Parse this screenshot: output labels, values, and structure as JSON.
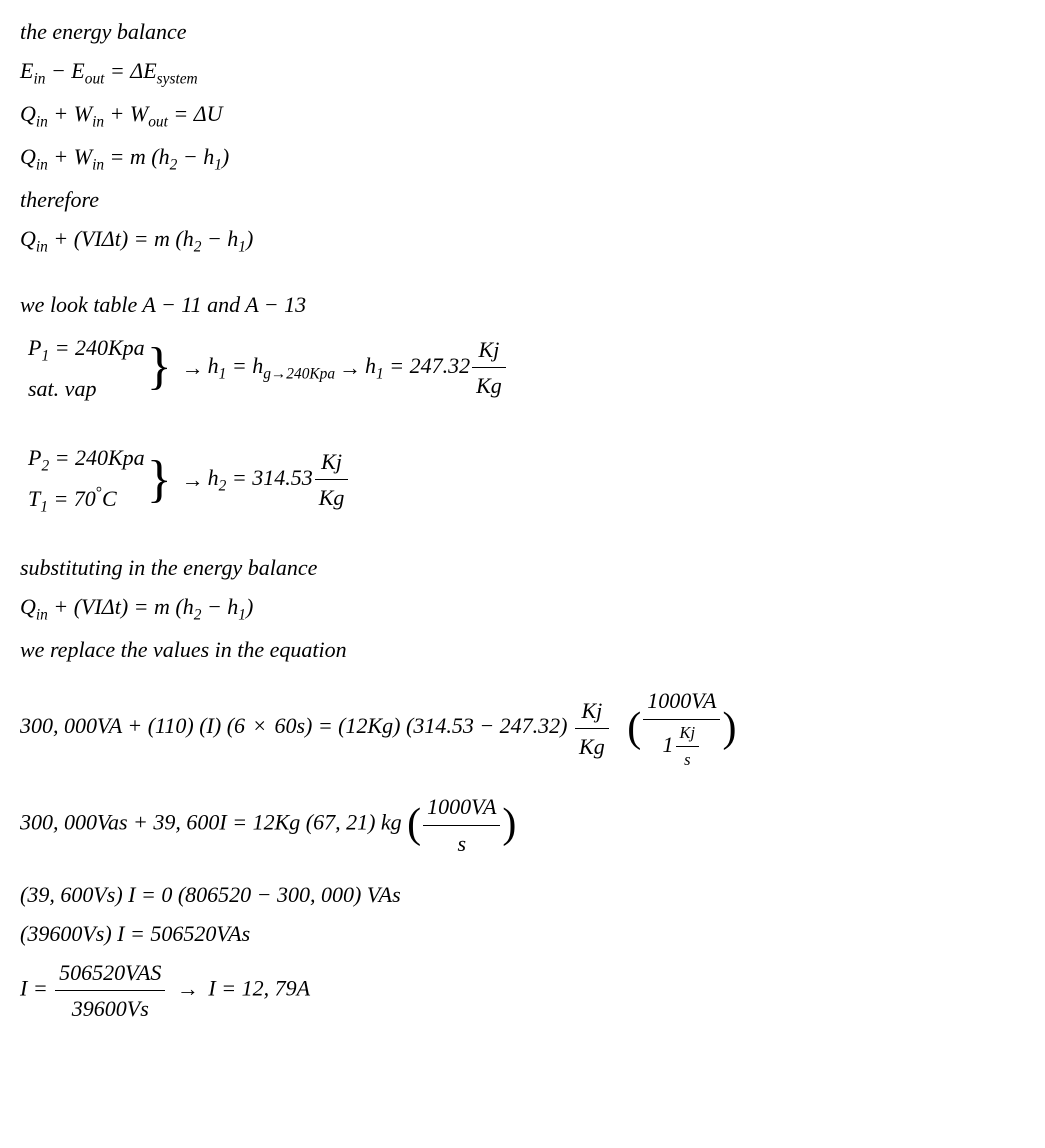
{
  "eq": {
    "l1": "the energy balance",
    "l2_a": "E",
    "l2_a_sub": "in",
    "l2_b": "E",
    "l2_b_sub": "out",
    "l2_delta": "ΔE",
    "l2_delta_sub": "system",
    "l3_q": "Q",
    "l3_qin": "in",
    "l3_w1": "W",
    "l3_w1s": "in",
    "l3_w2": "W",
    "l3_w2s": "out",
    "l3_du": "ΔU",
    "l4_q": "Q",
    "l4_qs": "in",
    "l4_w": "W",
    "l4_ws": "in",
    "l4_m": "m",
    "l4_h2": "h",
    "l4_h2s": "2",
    "l4_h1": "h",
    "l4_h1s": "1",
    "l5": "therefore",
    "l6_q": "Q",
    "l6_qs": "in",
    "l6_vi": "VIΔt",
    "l6_m": "m",
    "l6_h2": "h",
    "l6_h2s": "2",
    "l6_h1": "h",
    "l6_h1s": "1",
    "l7": "we look table A − 11  and A − 13",
    "b1_p1a": "P",
    "b1_p1s": "1",
    "b1_p1v": " = 240Kpa",
    "b1_sat": "sat. vap",
    "b1_h1a": "h",
    "b1_h1s": "1",
    "b1_hg": "h",
    "b1_hgs": "g→240Kpa",
    "b1_h1b": "h",
    "b1_h1bs": "1",
    "b1_val": " = 247.32",
    "b1_kj": "Kj",
    "b1_kg": "Kg",
    "b2_p2a": "P",
    "b2_p2s": "2",
    "b2_p2v": " = 240Kpa",
    "b2_t1a": "T",
    "b2_t1s": "1",
    "b2_t1v": " = 70",
    "b2_deg": "°",
    "b2_c": "C",
    "b2_h2a": "h",
    "b2_h2s": "2",
    "b2_val": " = 314.53",
    "b2_kj": "Kj",
    "b2_kg": "Kg",
    "l8": "substituting in the energy balance",
    "l9_q": "Q",
    "l9_qs": "in",
    "l9_vi": "VIΔt",
    "l9_m": "m",
    "l9_h2": "h",
    "l9_h2s": "2",
    "l9_h1": "h",
    "l9_h1s": "1",
    "l10": "we replace the values in the equation",
    "l11_a": "300, 000VA + (110) (I) (6 ",
    "l11_times": "×",
    "l11_b": " 60s) = (12Kg) (314.53 − 247.32) ",
    "l11_kj": "Kj",
    "l11_kg": "Kg",
    "l11_pn": "1000VA",
    "l11_pd_a": "1",
    "l11_pd_kj": "Kj",
    "l11_pd_s": "s",
    "l12_a": "300, 000Vas + 39, 600I = 12Kg (67, 21) kg ",
    "l12_pn": "1000VA",
    "l12_pd": "s",
    "l13": " (39, 600Vs) I = 0 (806520 − 300, 000) VAs",
    "l14": " (39600Vs) I = 506520VAs",
    "l15_i": "I = ",
    "l15_n": "506520VAS",
    "l15_d": "39600Vs",
    "l15_r": " I = 12, 79A"
  }
}
